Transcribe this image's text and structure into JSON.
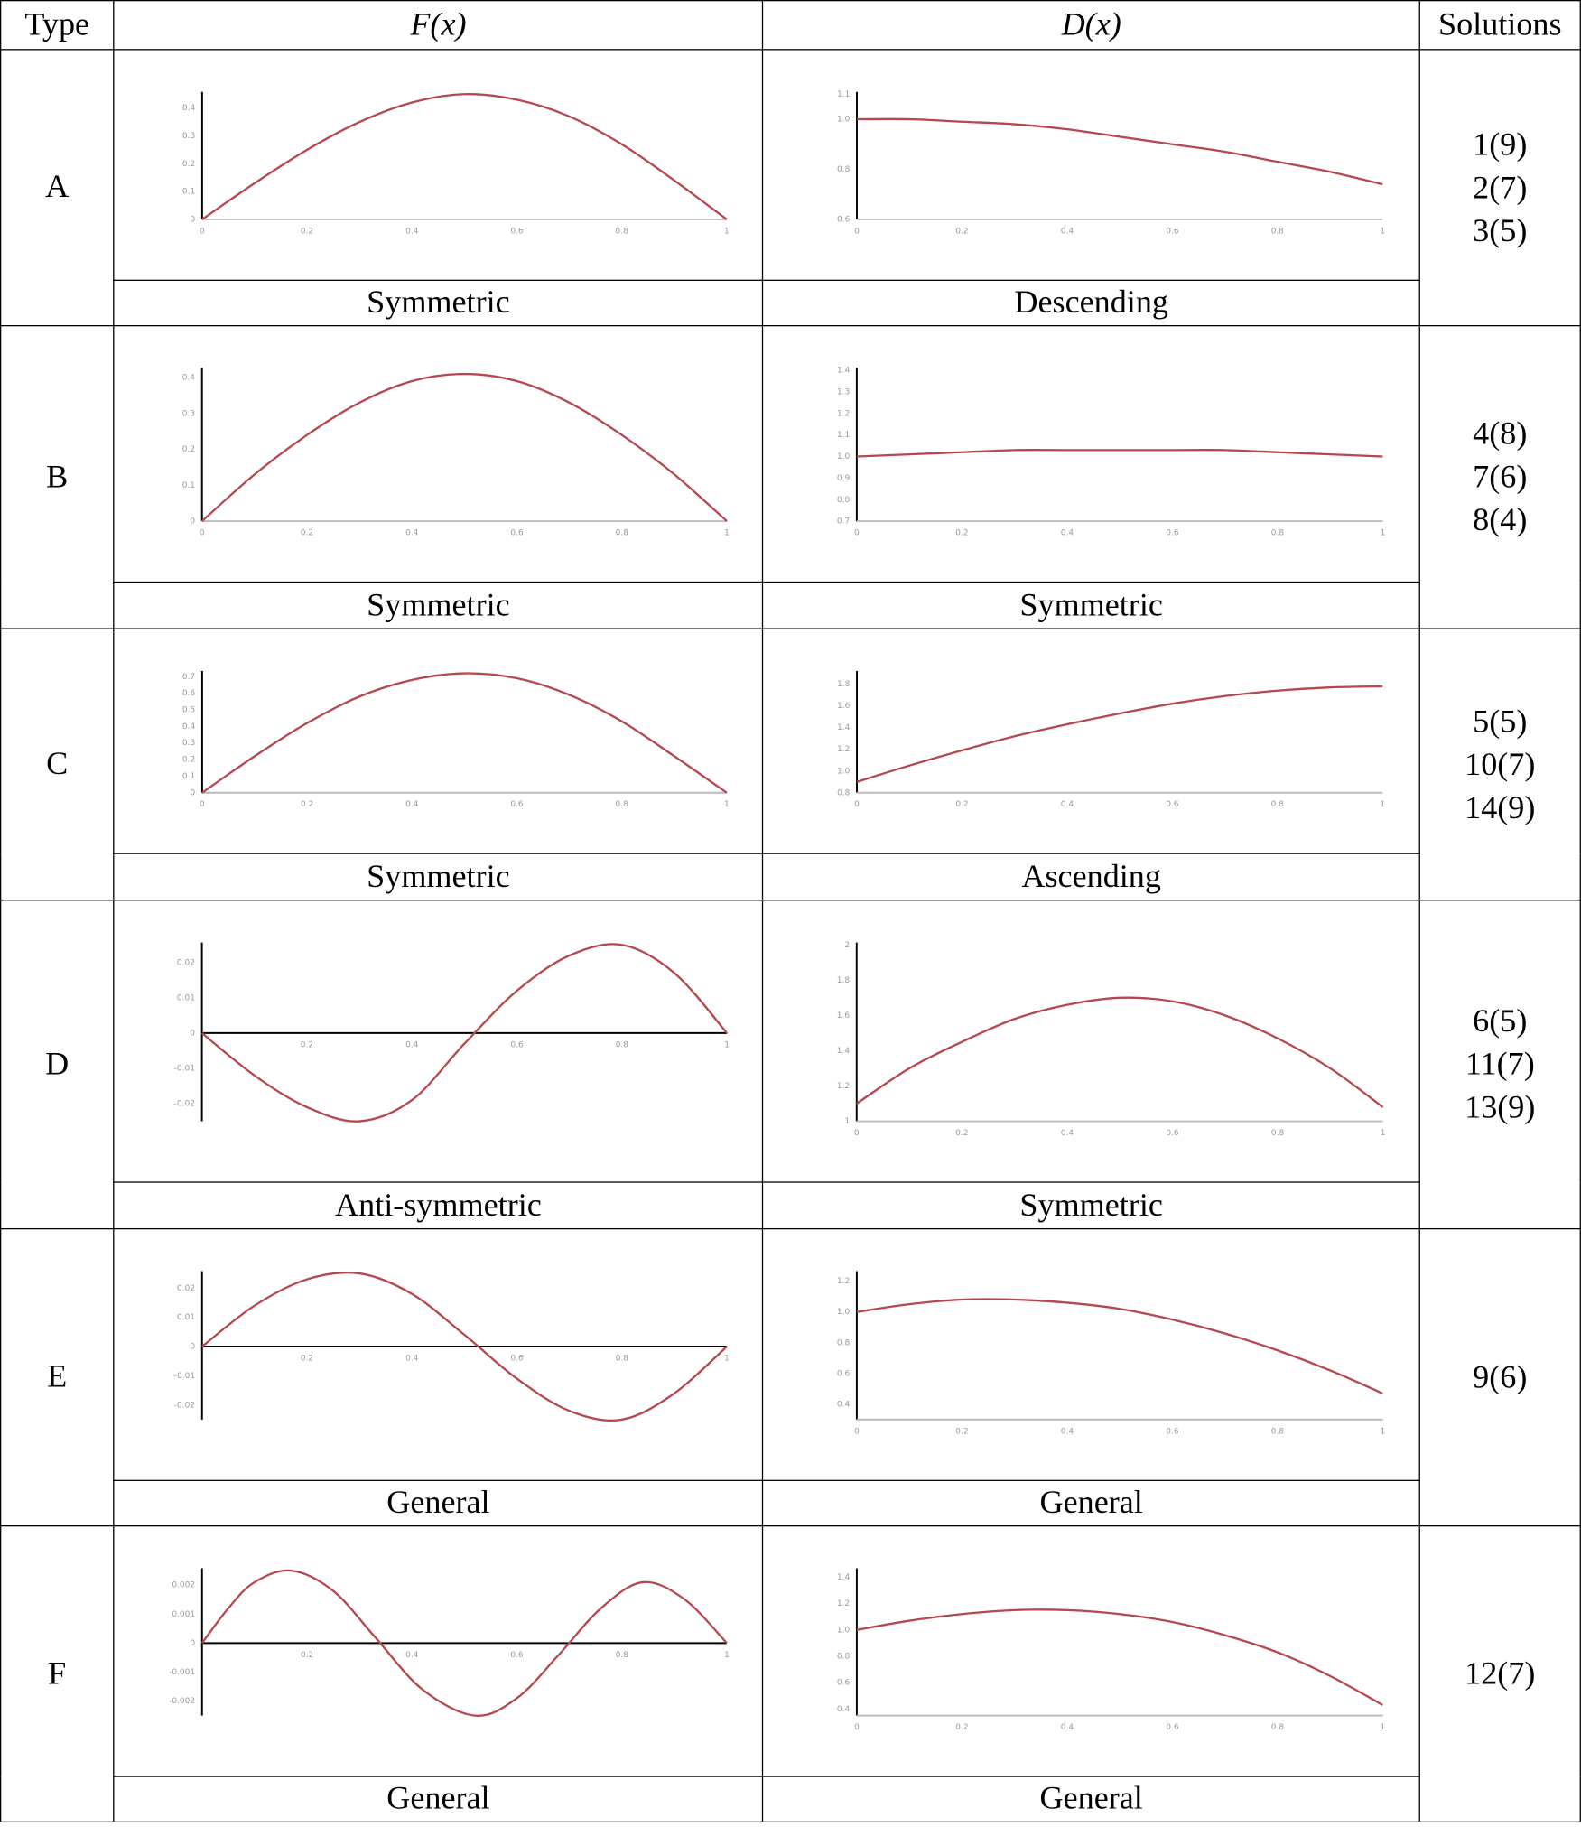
{
  "header": {
    "type": "Type",
    "fx": "F(x)",
    "dx": "D(x)",
    "solutions": "Solutions"
  },
  "curve_color": "#b5474f",
  "rows": [
    {
      "type": "A",
      "fx_label": "Symmetric",
      "dx_label": "Descending",
      "solutions": [
        "1(9)",
        "2(7)",
        "3(5)"
      ]
    },
    {
      "type": "B",
      "fx_label": "Symmetric",
      "dx_label": "Symmetric",
      "solutions": [
        "4(8)",
        "7(6)",
        "8(4)"
      ]
    },
    {
      "type": "C",
      "fx_label": "Symmetric",
      "dx_label": "Ascending",
      "solutions": [
        "5(5)",
        "10(7)",
        "14(9)"
      ]
    },
    {
      "type": "D",
      "fx_label": "Anti-symmetric",
      "dx_label": "Symmetric",
      "solutions": [
        "6(5)",
        "11(7)",
        "13(9)"
      ]
    },
    {
      "type": "E",
      "fx_label": "General",
      "dx_label": "General",
      "solutions": [
        "9(6)"
      ]
    },
    {
      "type": "F",
      "fx_label": "General",
      "dx_label": "General",
      "solutions": [
        "12(7)"
      ]
    }
  ],
  "chart_data": [
    {
      "id": "A-F",
      "type": "line",
      "x": [
        0,
        0.1,
        0.2,
        0.3,
        0.4,
        0.5,
        0.6,
        0.7,
        0.8,
        0.9,
        1
      ],
      "y": [
        0,
        0.13,
        0.25,
        0.35,
        0.42,
        0.45,
        0.43,
        0.37,
        0.27,
        0.14,
        0
      ],
      "ylim": [
        0,
        0.45
      ],
      "yticks": [
        "0",
        "0.1",
        "0.2",
        "0.3",
        "0.4"
      ],
      "ytickv": [
        0,
        0.1,
        0.2,
        0.3,
        0.4
      ],
      "xticks": [
        "0",
        "0.2",
        "0.4",
        "0.6",
        "0.8",
        "1"
      ]
    },
    {
      "id": "A-D",
      "type": "line",
      "x": [
        0,
        0.1,
        0.2,
        0.3,
        0.4,
        0.5,
        0.6,
        0.7,
        0.8,
        0.9,
        1
      ],
      "y": [
        1.0,
        1.0,
        0.99,
        0.98,
        0.96,
        0.93,
        0.9,
        0.87,
        0.83,
        0.79,
        0.74
      ],
      "ylim": [
        0.6,
        1.1
      ],
      "yticks": [
        "0.6",
        "0.8",
        "1.0",
        "1.1"
      ],
      "ytickv": [
        0.6,
        0.8,
        1.0,
        1.1
      ],
      "xticks": [
        "0",
        "0.2",
        "0.4",
        "0.6",
        "0.8",
        "1"
      ]
    },
    {
      "id": "B-F",
      "type": "line",
      "x": [
        0,
        0.1,
        0.2,
        0.3,
        0.4,
        0.5,
        0.6,
        0.7,
        0.8,
        0.9,
        1
      ],
      "y": [
        0,
        0.13,
        0.24,
        0.33,
        0.39,
        0.41,
        0.39,
        0.33,
        0.24,
        0.13,
        0
      ],
      "ylim": [
        0,
        0.42
      ],
      "yticks": [
        "0",
        "0.1",
        "0.2",
        "0.3",
        "0.4"
      ],
      "ytickv": [
        0,
        0.1,
        0.2,
        0.3,
        0.4
      ],
      "xticks": [
        "0",
        "0.2",
        "0.4",
        "0.6",
        "0.8",
        "1"
      ]
    },
    {
      "id": "B-D",
      "type": "line",
      "x": [
        0,
        0.1,
        0.2,
        0.3,
        0.4,
        0.5,
        0.6,
        0.7,
        0.8,
        0.9,
        1
      ],
      "y": [
        1.0,
        1.01,
        1.02,
        1.03,
        1.03,
        1.03,
        1.03,
        1.03,
        1.02,
        1.01,
        1.0
      ],
      "ylim": [
        0.7,
        1.4
      ],
      "yticks": [
        "0.7",
        "0.8",
        "0.9",
        "1.0",
        "1.1",
        "1.2",
        "1.3",
        "1.4"
      ],
      "ytickv": [
        0.7,
        0.8,
        0.9,
        1.0,
        1.1,
        1.2,
        1.3,
        1.4
      ],
      "xticks": [
        "0",
        "0.2",
        "0.4",
        "0.6",
        "0.8",
        "1"
      ]
    },
    {
      "id": "C-F",
      "type": "line",
      "x": [
        0,
        0.1,
        0.2,
        0.3,
        0.4,
        0.5,
        0.6,
        0.7,
        0.8,
        0.9,
        1
      ],
      "y": [
        0,
        0.22,
        0.42,
        0.58,
        0.68,
        0.72,
        0.69,
        0.59,
        0.43,
        0.22,
        0
      ],
      "ylim": [
        0,
        0.72
      ],
      "yticks": [
        "0",
        "0.1",
        "0.2",
        "0.3",
        "0.4",
        "0.5",
        "0.6",
        "0.7"
      ],
      "ytickv": [
        0,
        0.1,
        0.2,
        0.3,
        0.4,
        0.5,
        0.6,
        0.7
      ],
      "xticks": [
        "0",
        "0.2",
        "0.4",
        "0.6",
        "0.8",
        "1"
      ]
    },
    {
      "id": "C-D",
      "type": "line",
      "x": [
        0,
        0.1,
        0.2,
        0.3,
        0.4,
        0.5,
        0.6,
        0.7,
        0.8,
        0.9,
        1
      ],
      "y": [
        0.9,
        1.05,
        1.19,
        1.32,
        1.43,
        1.53,
        1.62,
        1.69,
        1.74,
        1.77,
        1.78
      ],
      "ylim": [
        0.8,
        1.9
      ],
      "yticks": [
        "0.8",
        "1.0",
        "1.2",
        "1.4",
        "1.6",
        "1.8"
      ],
      "ytickv": [
        0.8,
        1.0,
        1.2,
        1.4,
        1.6,
        1.8
      ],
      "xticks": [
        "0",
        "0.2",
        "0.4",
        "0.6",
        "0.8",
        "1"
      ]
    },
    {
      "id": "D-F",
      "type": "line",
      "x": [
        0,
        0.1,
        0.2,
        0.3,
        0.4,
        0.5,
        0.6,
        0.7,
        0.8,
        0.9,
        1
      ],
      "y": [
        0,
        -0.012,
        -0.021,
        -0.025,
        -0.019,
        -0.003,
        0.012,
        0.022,
        0.025,
        0.017,
        0
      ],
      "ylim": [
        -0.025,
        0.025
      ],
      "yticks": [
        "-0.02",
        "-0.01",
        "0",
        "0.01",
        "0.02"
      ],
      "ytickv": [
        -0.02,
        -0.01,
        0,
        0.01,
        0.02
      ],
      "xticks": [
        "0.2",
        "0.4",
        "0.6",
        "0.8",
        "1"
      ]
    },
    {
      "id": "D-D",
      "type": "line",
      "x": [
        0,
        0.1,
        0.2,
        0.3,
        0.4,
        0.5,
        0.6,
        0.7,
        0.8,
        0.9,
        1
      ],
      "y": [
        1.1,
        1.3,
        1.45,
        1.58,
        1.66,
        1.7,
        1.68,
        1.6,
        1.47,
        1.3,
        1.08
      ],
      "ylim": [
        1.0,
        2.0
      ],
      "yticks": [
        "1",
        "1.2",
        "1.4",
        "1.6",
        "1.8",
        "2"
      ],
      "ytickv": [
        1,
        1.2,
        1.4,
        1.6,
        1.8,
        2
      ],
      "xticks": [
        "0",
        "0.2",
        "0.4",
        "0.6",
        "0.8",
        "1"
      ]
    },
    {
      "id": "E-F",
      "type": "line",
      "x": [
        0,
        0.1,
        0.2,
        0.3,
        0.4,
        0.5,
        0.6,
        0.7,
        0.8,
        0.9,
        1
      ],
      "y": [
        0,
        0.014,
        0.023,
        0.025,
        0.018,
        0.004,
        -0.011,
        -0.022,
        -0.025,
        -0.016,
        0
      ],
      "ylim": [
        -0.025,
        0.025
      ],
      "yticks": [
        "-0.02",
        "-0.01",
        "0",
        "0.01",
        "0.02"
      ],
      "ytickv": [
        -0.02,
        -0.01,
        0,
        0.01,
        0.02
      ],
      "xticks": [
        "0.2",
        "0.4",
        "0.6",
        "0.8",
        "1"
      ]
    },
    {
      "id": "E-D",
      "type": "line",
      "x": [
        0,
        0.1,
        0.2,
        0.3,
        0.4,
        0.5,
        0.6,
        0.7,
        0.8,
        0.9,
        1
      ],
      "y": [
        1.0,
        1.05,
        1.08,
        1.08,
        1.06,
        1.02,
        0.95,
        0.86,
        0.75,
        0.62,
        0.47
      ],
      "ylim": [
        0.3,
        1.25
      ],
      "yticks": [
        "0.4",
        "0.6",
        "0.8",
        "1.0",
        "1.2"
      ],
      "ytickv": [
        0.4,
        0.6,
        0.8,
        1.0,
        1.2
      ],
      "xticks": [
        "0",
        "0.2",
        "0.4",
        "0.6",
        "0.8",
        "1"
      ]
    },
    {
      "id": "F-F",
      "type": "line",
      "x": [
        0,
        0.05,
        0.1,
        0.17,
        0.25,
        0.33,
        0.42,
        0.52,
        0.6,
        0.68,
        0.76,
        0.84,
        0.92,
        1
      ],
      "y": [
        0,
        0.0012,
        0.0021,
        0.0025,
        0.0018,
        0.0002,
        -0.0016,
        -0.0025,
        -0.0019,
        -0.0004,
        0.0012,
        0.0021,
        0.0015,
        0
      ],
      "ylim": [
        -0.0025,
        0.0025
      ],
      "yticks": [
        "-0.002",
        "-0.001",
        "0",
        "0.001",
        "0.002"
      ],
      "ytickv": [
        -0.002,
        -0.001,
        0,
        0.001,
        0.002
      ],
      "xticks": [
        "0.2",
        "0.4",
        "0.6",
        "0.8",
        "1"
      ]
    },
    {
      "id": "F-D",
      "type": "line",
      "x": [
        0,
        0.1,
        0.2,
        0.3,
        0.4,
        0.5,
        0.6,
        0.7,
        0.8,
        0.9,
        1
      ],
      "y": [
        1.0,
        1.07,
        1.12,
        1.15,
        1.15,
        1.12,
        1.06,
        0.96,
        0.83,
        0.65,
        0.43
      ],
      "ylim": [
        0.35,
        1.45
      ],
      "yticks": [
        "0.4",
        "0.6",
        "0.8",
        "1.0",
        "1.2",
        "1.4"
      ],
      "ytickv": [
        0.4,
        0.6,
        0.8,
        1.0,
        1.2,
        1.4
      ],
      "xticks": [
        "0",
        "0.2",
        "0.4",
        "0.6",
        "0.8",
        "1"
      ]
    }
  ]
}
